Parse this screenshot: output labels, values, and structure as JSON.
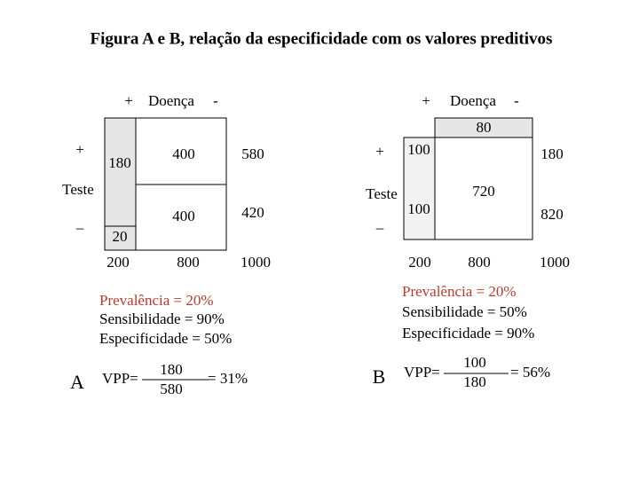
{
  "title": "Figura A e B, relação da especificidade com os valores preditivos",
  "panels": [
    {
      "col_header": {
        "plus": "+",
        "label": "Doença",
        "minus": "-"
      },
      "row_header": {
        "plus": "+",
        "label": "Teste",
        "minus": "–"
      },
      "cells": {
        "tp": 180,
        "fn": 20,
        "fp": 400,
        "tn": 400,
        "row_pos": 580,
        "row_neg": 420,
        "col_pos": 200,
        "col_neg": 800,
        "total": 1000
      },
      "stats": [
        "Prevalência = 20%",
        "Sensibilidade = 90%",
        "Especificidade = 50%"
      ],
      "formula": {
        "letter": "A",
        "lhs": "VPP=",
        "numerator": 180,
        "denominator": 580,
        "result": "= 31%"
      }
    },
    {
      "col_header": {
        "plus": "+",
        "label": "Doença",
        "minus": "-"
      },
      "row_header": {
        "plus": "+",
        "label": "Teste",
        "minus": "–"
      },
      "cells": {
        "tp": 100,
        "fn": 100,
        "fp": 80,
        "tn": 720,
        "row_pos": 180,
        "row_neg": 820,
        "col_pos": 200,
        "col_neg": 800,
        "total": 1000
      },
      "stats": [
        "Prevalência = 20%",
        "Sensibilidade = 50%",
        "Especificidade = 90%"
      ],
      "formula": {
        "letter": "B",
        "lhs": "VPP=",
        "numerator": 100,
        "denominator": 180,
        "result": "= 56%"
      }
    }
  ]
}
